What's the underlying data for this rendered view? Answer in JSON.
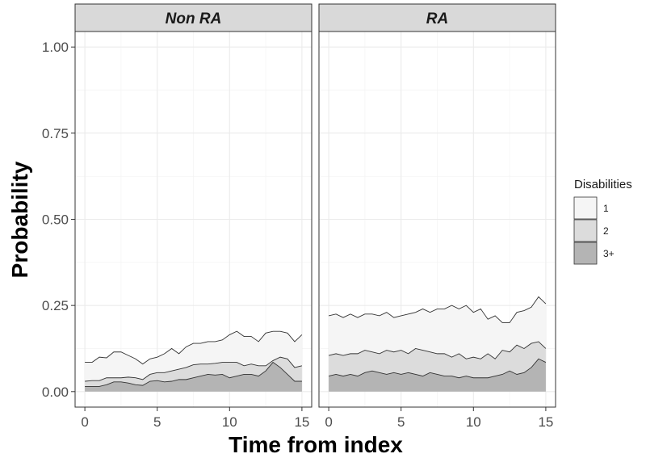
{
  "chart_data": {
    "type": "area",
    "xlabel": "Time from index",
    "ylabel": "Probability",
    "xlim": [
      0,
      15
    ],
    "ylim": [
      0,
      1
    ],
    "x_ticks": [
      0,
      5,
      10,
      15
    ],
    "y_ticks": [
      0.0,
      0.25,
      0.5,
      0.75,
      1.0
    ],
    "y_tick_labels": [
      "0.00",
      "0.25",
      "0.50",
      "0.75",
      "1.00"
    ],
    "grid": true,
    "stacking": "cumulative",
    "legend": {
      "title": "Disabilities",
      "position": "right",
      "entries": [
        {
          "label": "1",
          "color": "#f5f5f5"
        },
        {
          "label": "2",
          "color": "#dcdcdc"
        },
        {
          "label": "3+",
          "color": "#b4b4b4"
        }
      ]
    },
    "facets": [
      {
        "label": "Non RA",
        "x": [
          0,
          0.5,
          1,
          1.5,
          2,
          2.5,
          3,
          3.5,
          4,
          4.5,
          5,
          5.5,
          6,
          6.5,
          7,
          7.5,
          8,
          8.5,
          9,
          9.5,
          10,
          10.5,
          11,
          11.5,
          12,
          12.5,
          13,
          13.5,
          14,
          14.5,
          15
        ],
        "series": [
          {
            "name": "3+",
            "values": [
              0.015,
              0.015,
              0.015,
              0.02,
              0.028,
              0.028,
              0.025,
              0.02,
              0.018,
              0.03,
              0.032,
              0.028,
              0.03,
              0.035,
              0.035,
              0.04,
              0.045,
              0.05,
              0.048,
              0.05,
              0.04,
              0.045,
              0.05,
              0.05,
              0.045,
              0.06,
              0.085,
              0.07,
              0.05,
              0.03,
              0.03
            ]
          },
          {
            "name": "2",
            "values": [
              0.03,
              0.032,
              0.032,
              0.04,
              0.04,
              0.04,
              0.042,
              0.04,
              0.035,
              0.05,
              0.055,
              0.055,
              0.06,
              0.065,
              0.07,
              0.078,
              0.08,
              0.08,
              0.082,
              0.085,
              0.085,
              0.085,
              0.075,
              0.08,
              0.075,
              0.075,
              0.09,
              0.1,
              0.095,
              0.07,
              0.075
            ]
          },
          {
            "name": "1",
            "values": [
              0.085,
              0.085,
              0.1,
              0.098,
              0.115,
              0.115,
              0.105,
              0.095,
              0.08,
              0.095,
              0.1,
              0.11,
              0.125,
              0.11,
              0.13,
              0.14,
              0.14,
              0.145,
              0.145,
              0.15,
              0.165,
              0.175,
              0.16,
              0.16,
              0.145,
              0.17,
              0.175,
              0.175,
              0.17,
              0.145,
              0.165
            ]
          }
        ]
      },
      {
        "label": "RA",
        "x": [
          0,
          0.5,
          1,
          1.5,
          2,
          2.5,
          3,
          3.5,
          4,
          4.5,
          5,
          5.5,
          6,
          6.5,
          7,
          7.5,
          8,
          8.5,
          9,
          9.5,
          10,
          10.5,
          11,
          11.5,
          12,
          12.5,
          13,
          13.5,
          14,
          14.5,
          15
        ],
        "series": [
          {
            "name": "3+",
            "values": [
              0.045,
              0.05,
              0.045,
              0.05,
              0.045,
              0.055,
              0.06,
              0.055,
              0.05,
              0.055,
              0.05,
              0.055,
              0.05,
              0.045,
              0.055,
              0.05,
              0.045,
              0.045,
              0.04,
              0.045,
              0.04,
              0.04,
              0.04,
              0.045,
              0.05,
              0.06,
              0.05,
              0.055,
              0.07,
              0.095,
              0.085
            ]
          },
          {
            "name": "2",
            "values": [
              0.105,
              0.11,
              0.105,
              0.11,
              0.11,
              0.12,
              0.115,
              0.11,
              0.12,
              0.115,
              0.12,
              0.11,
              0.125,
              0.12,
              0.115,
              0.11,
              0.11,
              0.1,
              0.11,
              0.095,
              0.1,
              0.095,
              0.11,
              0.095,
              0.12,
              0.115,
              0.135,
              0.125,
              0.14,
              0.145,
              0.125
            ]
          },
          {
            "name": "1",
            "values": [
              0.22,
              0.225,
              0.215,
              0.225,
              0.215,
              0.225,
              0.225,
              0.22,
              0.23,
              0.215,
              0.22,
              0.225,
              0.23,
              0.24,
              0.23,
              0.24,
              0.24,
              0.25,
              0.24,
              0.25,
              0.23,
              0.24,
              0.21,
              0.22,
              0.2,
              0.2,
              0.23,
              0.235,
              0.245,
              0.275,
              0.255
            ]
          }
        ]
      }
    ]
  }
}
